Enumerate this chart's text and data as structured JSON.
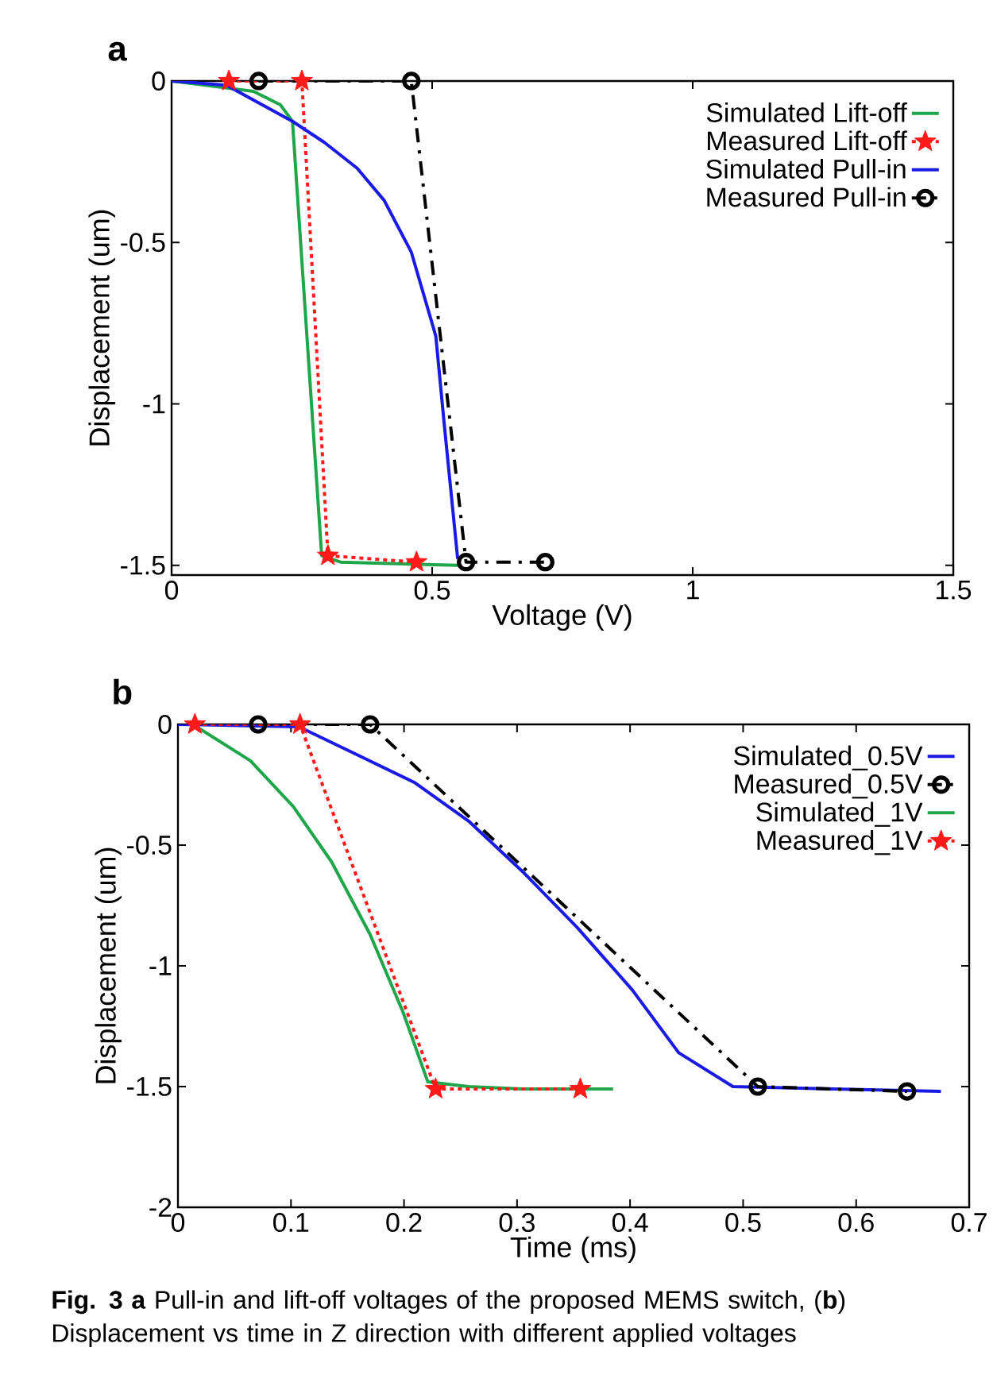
{
  "chart_data": [
    {
      "type": "line",
      "title": "a",
      "xlabel": "Voltage (V)",
      "ylabel": "Displacement (um)",
      "xlim": [
        0,
        1.5
      ],
      "ylim": [
        -1.53,
        0
      ],
      "xticks": [
        0,
        0.5,
        1,
        1.5
      ],
      "yticks": [
        0,
        -0.5,
        -1,
        -1.5
      ],
      "legend": "top right",
      "series": [
        {
          "name": "Simulated Lift-off",
          "color": "#1fa64a",
          "marker": "none",
          "line_style": "solid",
          "x": [
            0,
            0.105,
            0.157,
            0.209,
            0.232,
            0.288,
            0.324,
            0.55
          ],
          "values": [
            0,
            null,
            -0.032,
            -0.074,
            -0.125,
            -1.47,
            -1.49,
            -1.5
          ]
        },
        {
          "name": "Measured Lift-off",
          "color": "#ff1a1a",
          "marker": "star",
          "line_style": "dotted",
          "x": [
            0.11,
            0.25,
            0.3,
            0.47
          ],
          "values": [
            0,
            0,
            -1.47,
            -1.49
          ]
        },
        {
          "name": "Simulated Pull-in",
          "color": "#1a1ae6",
          "marker": "none",
          "line_style": "solid",
          "x": [
            0,
            0.105,
            0.232,
            0.293,
            0.356,
            0.408,
            0.46,
            0.507,
            0.523,
            0.549
          ],
          "values": [
            0,
            -0.013,
            -0.125,
            -0.19,
            -0.27,
            -0.37,
            -0.53,
            -0.79,
            -1.06,
            -1.48
          ]
        },
        {
          "name": "Measured Pull-in",
          "color": "#000000",
          "marker": "circle",
          "line_style": "dashdot",
          "x": [
            0.167,
            0.46,
            0.565,
            0.717
          ],
          "values": [
            0,
            0,
            -1.49,
            -1.49
          ]
        }
      ]
    },
    {
      "type": "line",
      "title": "b",
      "xlabel": "Time (ms)",
      "ylabel": "Displacement (um)",
      "xlim": [
        0,
        0.7
      ],
      "ylim": [
        -2,
        0
      ],
      "xticks": [
        0,
        0.1,
        0.2,
        0.3,
        0.4,
        0.5,
        0.6,
        0.7
      ],
      "yticks": [
        0,
        -0.5,
        -1,
        -1.5,
        -2
      ],
      "legend": "top right",
      "annotations": [
        "**Fig. 3 a** Pull-in and lift-off voltages of the proposed MEMS switch, (**b**) Displacement vs time in Z direction with different applied voltages"
      ],
      "series": [
        {
          "name": "Simulated_0.5V",
          "color": "#1a1ae6",
          "marker": "none",
          "line_style": "solid",
          "x": [
            0,
            0.107,
            0.156,
            0.209,
            0.257,
            0.305,
            0.353,
            0.402,
            0.443,
            0.491,
            0.675
          ],
          "values": [
            0,
            -0.01,
            -0.12,
            -0.24,
            -0.4,
            -0.61,
            -0.84,
            -1.1,
            -1.36,
            -1.5,
            -1.52
          ]
        },
        {
          "name": "Measured_0.5V",
          "color": "#000000",
          "marker": "circle",
          "line_style": "dashdot",
          "x": [
            0.071,
            0.17,
            0.513,
            0.645
          ],
          "values": [
            0,
            0,
            -1.5,
            -1.52
          ]
        },
        {
          "name": "Simulated_1V",
          "color": "#1fa64a",
          "marker": "none",
          "line_style": "solid",
          "x": [
            0.013,
            0.064,
            0.102,
            0.136,
            0.17,
            0.199,
            0.221,
            0.257,
            0.305,
            0.385
          ],
          "values": [
            0,
            -0.15,
            -0.34,
            -0.57,
            -0.87,
            -1.19,
            -1.48,
            -1.5,
            -1.51,
            -1.51
          ]
        },
        {
          "name": "Measured_1V",
          "color": "#ff1a1a",
          "marker": "star",
          "line_style": "dotted",
          "x": [
            0.015,
            0.108,
            0.228,
            0.356
          ],
          "values": [
            0,
            0,
            -1.51,
            -1.51
          ]
        }
      ]
    }
  ]
}
